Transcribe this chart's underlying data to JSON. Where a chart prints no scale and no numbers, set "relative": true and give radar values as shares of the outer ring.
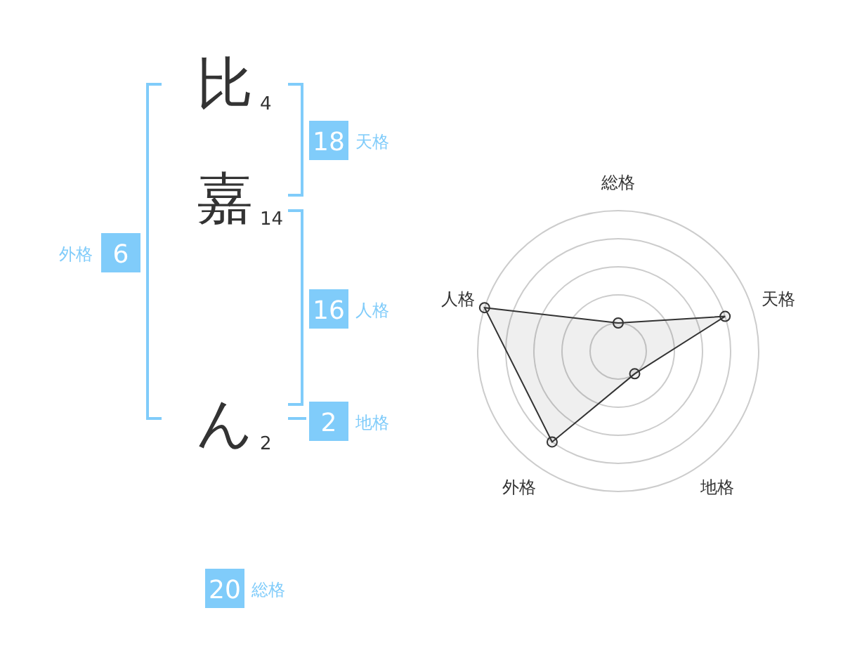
{
  "chart_data": [
    {
      "type": "other",
      "annotations": [
        "比",
        "4",
        "嘉",
        "14",
        "ん",
        "2",
        "18",
        "天格",
        "16",
        "人格",
        "2",
        "地格",
        "6",
        "外格",
        "20",
        "総格"
      ]
    },
    {
      "type": "radar",
      "relative": true,
      "categories": [
        "総格",
        "天格",
        "地格",
        "外格",
        "人格"
      ],
      "grid": true,
      "marker": "circle",
      "series": [
        {
          "color": "#333333",
          "values": [
            0.2,
            0.8,
            0.2,
            0.8,
            1.0
          ]
        }
      ]
    }
  ]
}
